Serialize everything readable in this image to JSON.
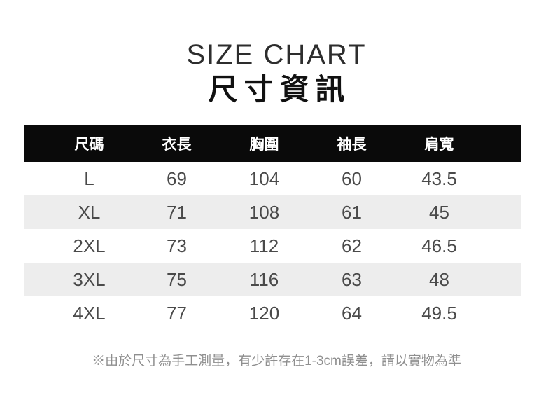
{
  "header": {
    "title_en": "SIZE CHART",
    "title_zh": "尺寸資訊"
  },
  "table": {
    "headers": [
      "尺碼",
      "衣長",
      "胸圍",
      "袖長",
      "肩寬"
    ],
    "rows": [
      [
        "L",
        "69",
        "104",
        "60",
        "43.5"
      ],
      [
        "XL",
        "71",
        "108",
        "61",
        "45"
      ],
      [
        "2XL",
        "73",
        "112",
        "62",
        "46.5"
      ],
      [
        "3XL",
        "75",
        "116",
        "63",
        "48"
      ],
      [
        "4XL",
        "77",
        "120",
        "64",
        "49.5"
      ]
    ]
  },
  "note": {
    "text": "※由於尺寸為手工測量，有少許存在1-3cm誤差，請以實物為準"
  },
  "colors": {
    "header_bg": "#0a0a0a",
    "header_text": "#ffffff",
    "row_alt_bg": "#ededed",
    "body_text": "#4a4a4a",
    "note_text": "#8f8f8f"
  },
  "chart_data": {
    "type": "table",
    "title": "SIZE CHART",
    "subtitle": "尺寸資訊",
    "columns": [
      "尺碼",
      "衣長",
      "胸圍",
      "袖長",
      "肩寬"
    ],
    "rows": [
      [
        "L",
        69,
        104,
        60,
        43.5
      ],
      [
        "XL",
        71,
        108,
        61,
        45
      ],
      [
        "2XL",
        73,
        112,
        62,
        46.5
      ],
      [
        "3XL",
        75,
        116,
        63,
        48
      ],
      [
        "4XL",
        77,
        120,
        64,
        49.5
      ]
    ],
    "note": "※由於尺寸為手工測量，有少許存在1-3cm誤差，請以實物為準",
    "layout_hints": {
      "header_style": "white-on-black",
      "zebra_striping": "rows XL and 3XL shaded light gray",
      "alignment": "all cells centered"
    }
  }
}
